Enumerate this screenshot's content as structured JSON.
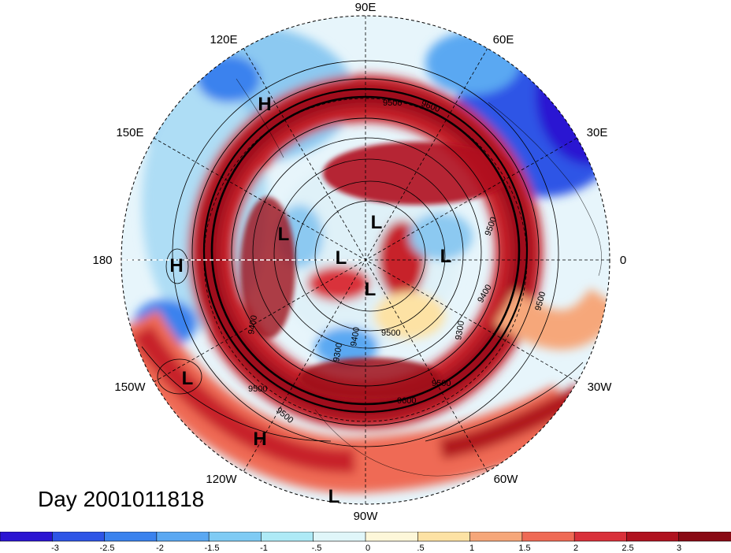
{
  "day_label": "Day 2001011818",
  "longitude_labels": [
    "90E",
    "60E",
    "120E",
    "150E",
    "30E",
    "180",
    "0",
    "150W",
    "30W",
    "120W",
    "60W",
    "90W"
  ],
  "pressure_systems": [
    {
      "type": "H",
      "lon": 128
    },
    {
      "type": "H",
      "lon": 180
    },
    {
      "type": "L",
      "lon": -150
    },
    {
      "type": "H",
      "lon": -117
    },
    {
      "type": "L",
      "lon": -92
    },
    {
      "type": "L",
      "lon": 148
    },
    {
      "type": "L",
      "lon": 86
    },
    {
      "type": "L",
      "lon": -8
    },
    {
      "type": "L",
      "lon": -165
    },
    {
      "type": "L",
      "lon": 35
    }
  ],
  "contour_labels": [
    "9500",
    "9600",
    "9500",
    "9400",
    "9300",
    "9500",
    "9500",
    "9600",
    "9400",
    "9500",
    "9500",
    "9500",
    "9400",
    "9300"
  ],
  "colorbar": {
    "tick_labels": [
      "-3",
      "-2.5",
      "-2",
      "-1.5",
      "-1",
      "-.5",
      "0",
      ".5",
      "1",
      "1.5",
      "2",
      "2.5",
      "3"
    ],
    "colors": [
      "#2a14d2",
      "#2d55e6",
      "#3a82ee",
      "#5aa8f2",
      "#7fcbf4",
      "#aeeaf6",
      "#e0f6f9",
      "#fdf7d9",
      "#fde2a4",
      "#f6a77a",
      "#ef6a55",
      "#d9303a",
      "#b0121f",
      "#8a0a14"
    ]
  }
}
